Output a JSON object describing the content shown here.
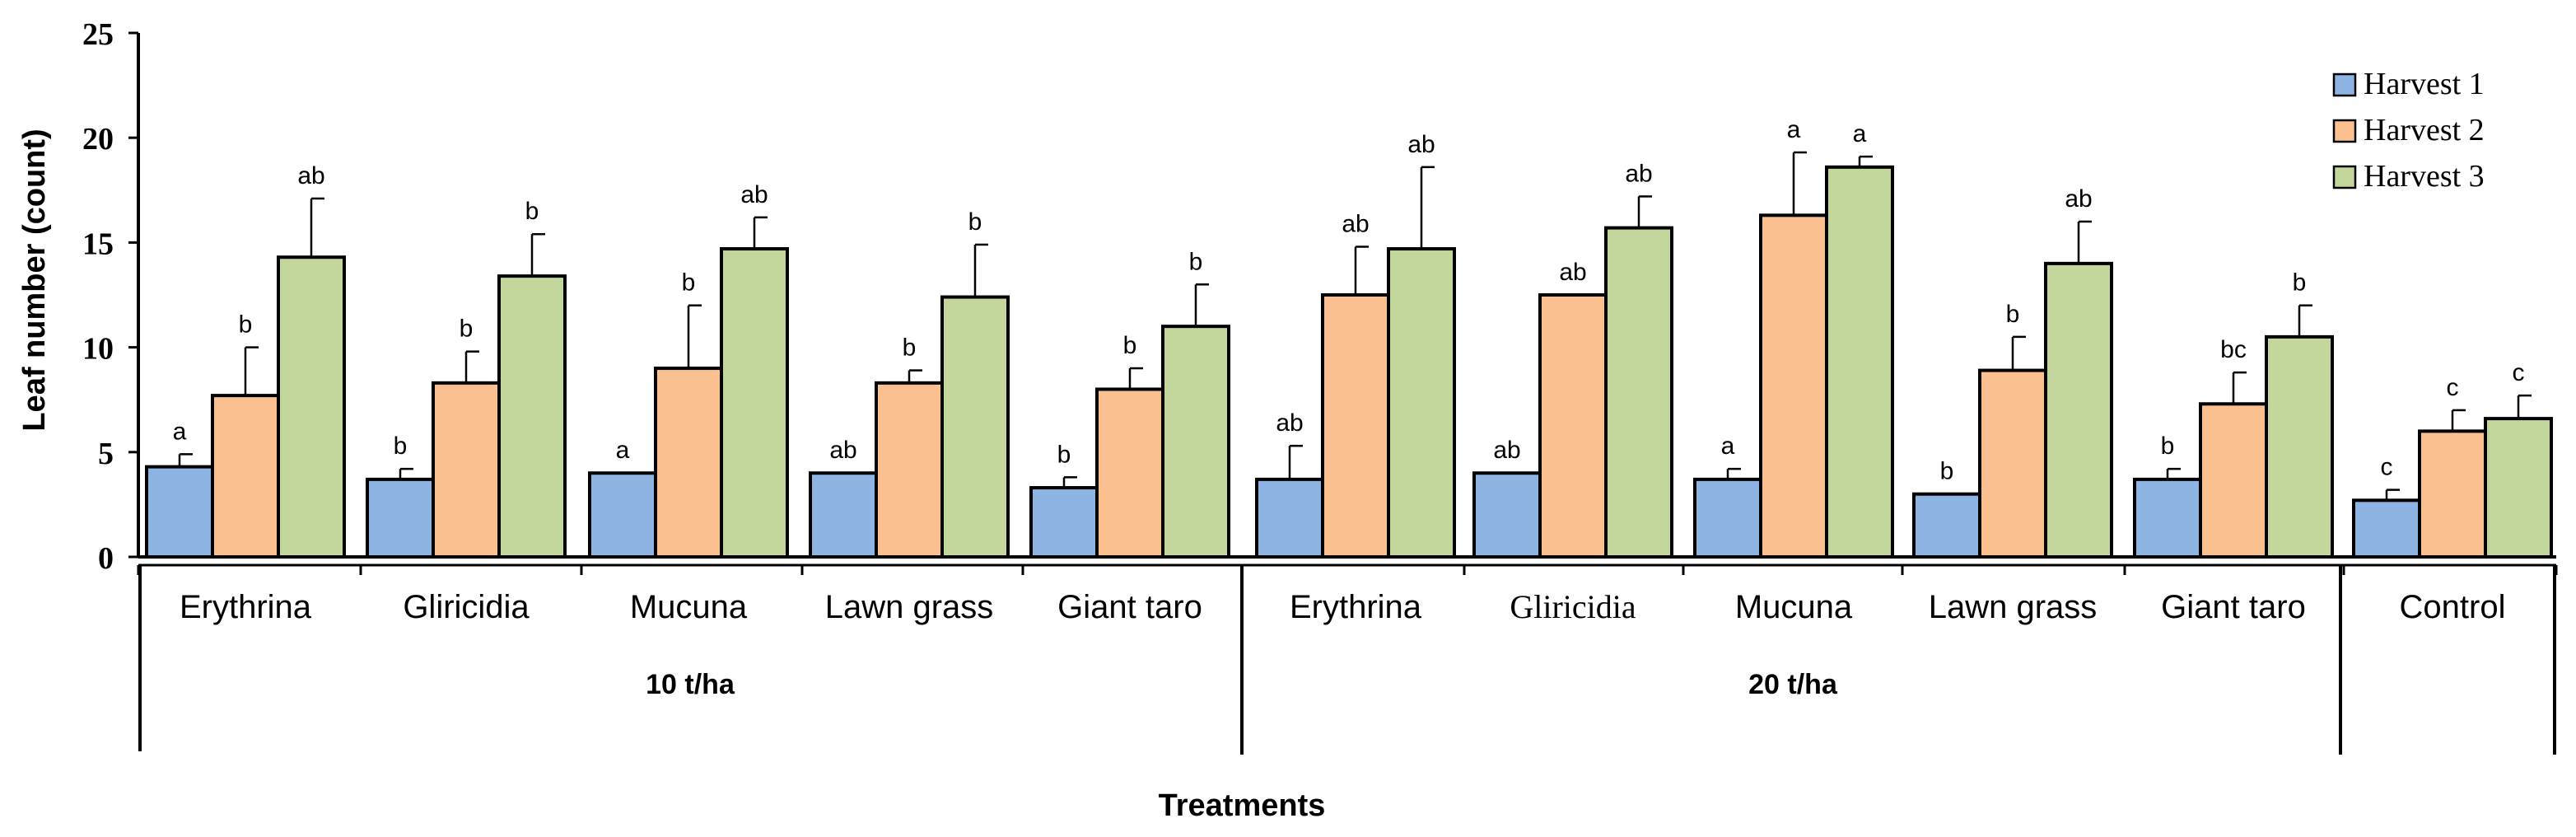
{
  "chart_data": {
    "type": "bar",
    "title": "",
    "ylabel": "Leaf number (count)",
    "xlabel": "Treatments",
    "ylim": [
      0,
      25
    ],
    "yticks": [
      "0",
      "5",
      "10",
      "15",
      "20",
      "25"
    ],
    "legend_position": "top-right",
    "colors": {
      "Harvest 1": "#8EB4E3",
      "Harvest 2": "#FAC090",
      "Harvest 3": "#C3D69B"
    },
    "series_names": [
      "Harvest 1",
      "Harvest 2",
      "Harvest 3"
    ],
    "groups": [
      {
        "label": "10 t/ha",
        "categories": [
          "Erythrina",
          "Gliricidia",
          "Mucuna",
          "Lawn grass",
          "Giant taro"
        ]
      },
      {
        "label": "20 t/ha",
        "categories": [
          "Erythrina",
          "Gliricidia",
          "Mucuna",
          "Lawn grass",
          "Giant taro"
        ]
      },
      {
        "label": "",
        "categories": [
          "Control"
        ]
      }
    ],
    "categories": [
      "Erythrina",
      "Gliricidia",
      "Mucuna",
      "Lawn grass",
      "Giant taro",
      "Erythrina",
      "Gliricidia",
      "Mucuna",
      "Lawn grass",
      "Giant taro",
      "Control"
    ],
    "series": [
      {
        "name": "Harvest 1",
        "values": [
          4.3,
          3.7,
          4.0,
          4.0,
          3.3,
          3.7,
          4.0,
          3.7,
          3.0,
          3.7,
          2.7
        ],
        "errors": [
          0.6,
          0.5,
          0.0,
          0.0,
          0.5,
          1.6,
          0.0,
          0.5,
          0.0,
          0.5,
          0.5
        ],
        "letters": [
          "a",
          "b",
          "a",
          "ab",
          "b",
          "ab",
          "ab",
          "a",
          "b",
          "b",
          "c"
        ]
      },
      {
        "name": "Harvest 2",
        "values": [
          7.7,
          8.3,
          9.0,
          8.3,
          8.0,
          12.5,
          12.5,
          16.3,
          8.9,
          7.3,
          6.0
        ],
        "errors": [
          2.3,
          1.5,
          3.0,
          0.6,
          1.0,
          2.3,
          0.0,
          3.0,
          1.6,
          1.5,
          1.0
        ],
        "letters": [
          "b",
          "b",
          "b",
          "b",
          "b",
          "ab",
          "ab",
          "a",
          "b",
          "bc",
          "c"
        ]
      },
      {
        "name": "Harvest 3",
        "values": [
          14.3,
          13.4,
          14.7,
          12.4,
          11.0,
          14.7,
          15.7,
          18.6,
          14.0,
          10.5,
          6.6
        ],
        "errors": [
          2.8,
          2.0,
          1.5,
          2.5,
          2.0,
          3.9,
          1.5,
          0.5,
          2.0,
          1.5,
          1.1
        ],
        "letters": [
          "ab",
          "b",
          "ab",
          "b",
          "b",
          "ab",
          "ab",
          "a",
          "ab",
          "b",
          "c"
        ]
      }
    ]
  }
}
